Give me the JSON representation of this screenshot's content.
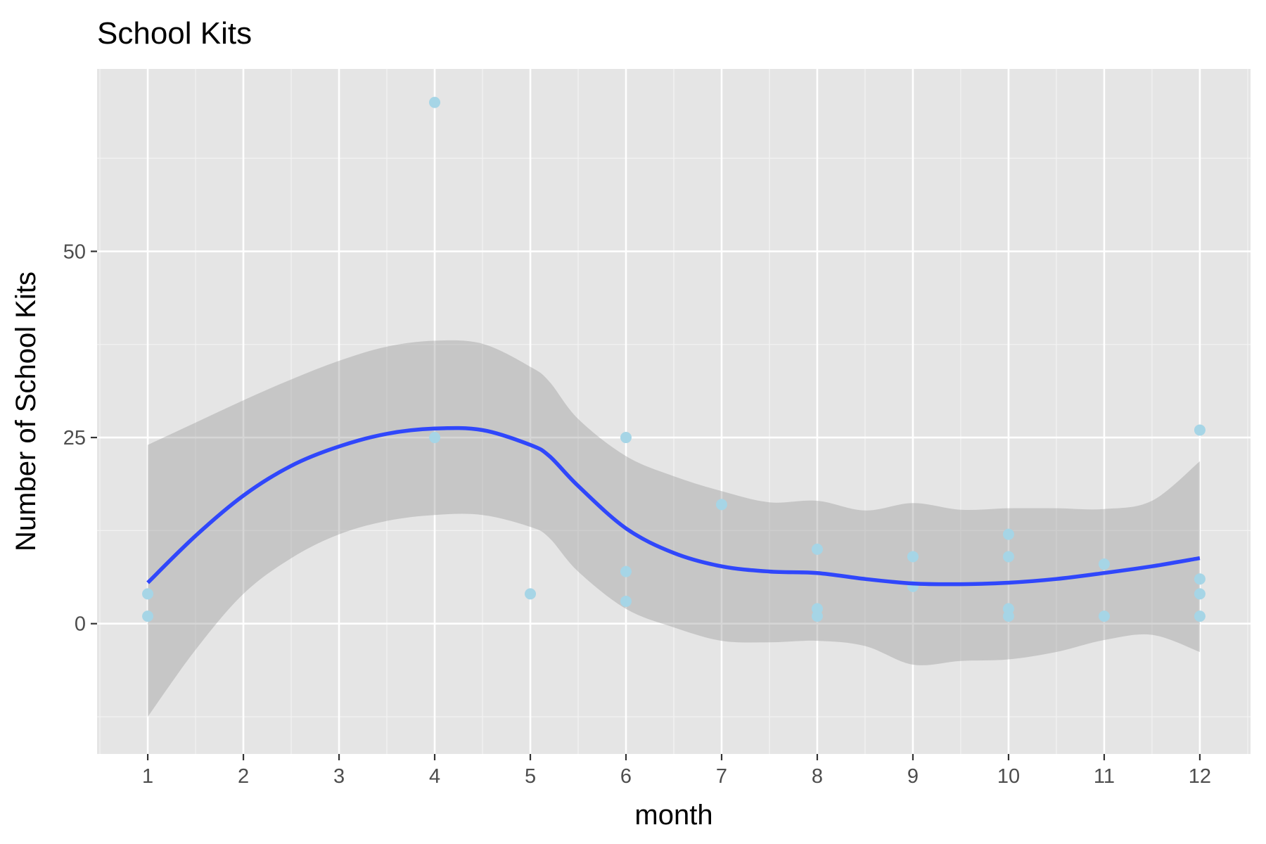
{
  "chart_data": {
    "type": "scatter",
    "title": "School Kits",
    "xlabel": "month",
    "ylabel": "Number of School Kits",
    "xlim": [
      0.47,
      12.53
    ],
    "ylim": [
      -17.5,
      74.5
    ],
    "x_ticks": [
      1,
      2,
      3,
      4,
      5,
      6,
      7,
      8,
      9,
      10,
      11,
      12
    ],
    "x_tick_labels": [
      "1",
      "2",
      "3",
      "4",
      "5",
      "6",
      "7",
      "8",
      "9",
      "10",
      "11",
      "12"
    ],
    "y_ticks": [
      0,
      25,
      50
    ],
    "y_tick_labels": [
      "0",
      "25",
      "50"
    ],
    "grid": true,
    "legend": "none",
    "points": [
      {
        "x": 1,
        "y": 4
      },
      {
        "x": 1,
        "y": 1
      },
      {
        "x": 4,
        "y": 70
      },
      {
        "x": 4,
        "y": 25
      },
      {
        "x": 5,
        "y": 4
      },
      {
        "x": 6,
        "y": 25
      },
      {
        "x": 6,
        "y": 7
      },
      {
        "x": 6,
        "y": 3
      },
      {
        "x": 7,
        "y": 16
      },
      {
        "x": 8,
        "y": 10
      },
      {
        "x": 8,
        "y": 2
      },
      {
        "x": 8,
        "y": 1
      },
      {
        "x": 9,
        "y": 9
      },
      {
        "x": 9,
        "y": 5
      },
      {
        "x": 10,
        "y": 12
      },
      {
        "x": 10,
        "y": 9
      },
      {
        "x": 10,
        "y": 2
      },
      {
        "x": 10,
        "y": 1
      },
      {
        "x": 11,
        "y": 8
      },
      {
        "x": 11,
        "y": 1
      },
      {
        "x": 12,
        "y": 26
      },
      {
        "x": 12,
        "y": 6
      },
      {
        "x": 12,
        "y": 4
      },
      {
        "x": 12,
        "y": 1
      }
    ],
    "smooth": {
      "x": [
        1,
        1.5,
        2,
        2.5,
        3,
        3.5,
        4,
        4.5,
        5,
        5.2,
        5.5,
        6,
        6.5,
        7,
        7.5,
        8,
        8.5,
        9,
        9.5,
        10,
        10.5,
        11,
        11.5,
        12
      ],
      "y": [
        5.5,
        11.8,
        17.2,
        21.2,
        23.8,
        25.5,
        26.2,
        26.0,
        24.0,
        22.5,
        18.5,
        12.8,
        9.5,
        7.7,
        7.0,
        6.8,
        6.0,
        5.4,
        5.3,
        5.5,
        6.0,
        6.8,
        7.7,
        8.8
      ],
      "lower": [
        -12.5,
        -3.5,
        4.0,
        8.8,
        12.0,
        13.8,
        14.6,
        14.6,
        13.0,
        11.5,
        7.0,
        2.0,
        -0.5,
        -2.3,
        -2.5,
        -2.3,
        -3.0,
        -5.5,
        -5.0,
        -4.8,
        -3.8,
        -2.2,
        -1.5,
        -3.8
      ],
      "upper": [
        24.0,
        27.0,
        30.0,
        32.8,
        35.3,
        37.2,
        38.0,
        37.6,
        34.5,
        32.5,
        27.5,
        22.5,
        19.8,
        17.8,
        16.3,
        16.5,
        15.2,
        16.2,
        15.3,
        15.5,
        15.5,
        15.4,
        16.5,
        21.8
      ]
    },
    "colors": {
      "panel": "#e5e5e5",
      "grid_major": "#ffffff",
      "grid_minor": "#f2f2f2",
      "points": "#a6d5e6",
      "smooth_line": "#3047fb",
      "ribbon": "#999999"
    }
  }
}
